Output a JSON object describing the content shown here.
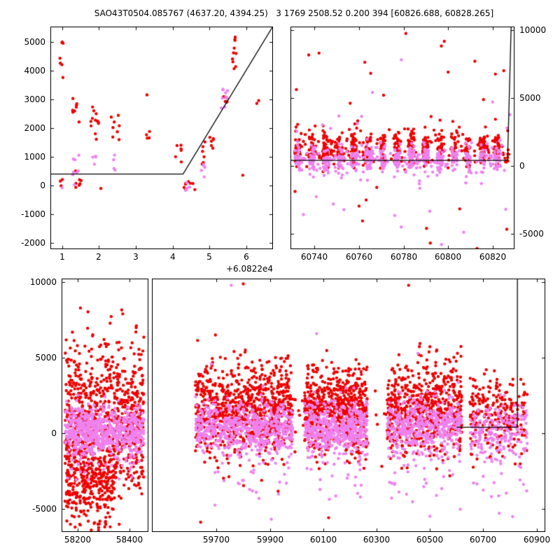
{
  "title": "SAO43T0504.085767 (4637.20, 4394.25)   3 1769 2508.52 0.200 394 [60826.688, 60828.265]",
  "palette": {
    "red": "#ee0000",
    "violet": "#ee82ee",
    "line": "#000000"
  },
  "chart_data": [
    {
      "id": "top_left",
      "type": "scatter",
      "ylim": [
        -2200,
        5500
      ],
      "ytick_side": "left",
      "yticks": [
        {
          "v": 5000,
          "label": "5000"
        },
        {
          "v": 4000,
          "label": "4000"
        },
        {
          "v": 3000,
          "label": "3000"
        },
        {
          "v": 2000,
          "label": "2000"
        },
        {
          "v": 1000,
          "label": "1000"
        },
        {
          "v": 0,
          "label": "0"
        },
        {
          "v": -1000,
          "label": "-1000"
        },
        {
          "v": -2000,
          "label": "-2000"
        }
      ],
      "x_offset": "+6.0822e4",
      "panels": [
        {
          "frac": [
            0,
            1
          ],
          "xlim": [
            0.7,
            6.7
          ],
          "xticks": [
            {
              "v": 1,
              "label": "1"
            },
            {
              "v": 2,
              "label": "2"
            },
            {
              "v": 3,
              "label": "3"
            },
            {
              "v": 4,
              "label": "4"
            },
            {
              "v": 5,
              "label": "5"
            },
            {
              "v": 6,
              "label": "6"
            }
          ]
        }
      ],
      "line": {
        "color": "#000000",
        "width": 1.3,
        "points": [
          [
            0.7,
            394
          ],
          [
            4.28,
            394
          ],
          [
            6.7,
            5500
          ]
        ]
      },
      "series": [
        {
          "color": "red",
          "clusters": [
            {
              "x0": 0.92,
              "x1": 1.04,
              "n": 6,
              "y": {
                "mean": 4300,
                "sd": 600,
                "min": 3500,
                "max": 5300
              }
            },
            {
              "x0": 0.95,
              "x1": 1.06,
              "n": 3,
              "y": {
                "mean": 60,
                "sd": 90,
                "min": -150,
                "max": 300
              }
            },
            {
              "x0": 1.28,
              "x1": 1.5,
              "n": 9,
              "y": {
                "mean": 2700,
                "sd": 260,
                "min": 2200,
                "max": 3150
              }
            },
            {
              "x0": 1.3,
              "x1": 1.55,
              "n": 7,
              "y": {
                "mean": 160,
                "sd": 160,
                "min": -150,
                "max": 500
              }
            },
            {
              "x0": 1.75,
              "x1": 2.0,
              "n": 12,
              "y": {
                "mean": 2200,
                "sd": 450,
                "min": 1400,
                "max": 3000
              }
            },
            {
              "x0": 2.3,
              "x1": 2.55,
              "n": 8,
              "y": {
                "mean": 1900,
                "sd": 360,
                "min": 1150,
                "max": 2600
              }
            },
            {
              "x0": 3.25,
              "x1": 3.42,
              "n": 4,
              "y": {
                "mean": 1800,
                "sd": 130,
                "min": 1600,
                "max": 2000
              }
            },
            {
              "x0": 4.05,
              "x1": 4.25,
              "n": 6,
              "y": {
                "mean": 1100,
                "sd": 220,
                "min": 700,
                "max": 1400
              }
            },
            {
              "x0": 4.3,
              "x1": 4.55,
              "n": 8,
              "y": {
                "mean": 60,
                "sd": 150,
                "min": -250,
                "max": 350
              }
            },
            {
              "x0": 4.75,
              "x1": 4.95,
              "n": 6,
              "y": {
                "mean": 1100,
                "sd": 350,
                "min": 600,
                "max": 1650
              }
            },
            {
              "x0": 5.0,
              "x1": 5.15,
              "n": 6,
              "y": {
                "mean": 1800,
                "sd": 350,
                "min": 1250,
                "max": 2350
              }
            },
            {
              "x0": 5.3,
              "x1": 5.5,
              "n": 6,
              "y": {
                "mean": 3100,
                "sd": 160,
                "min": 2850,
                "max": 3400
              }
            },
            {
              "x0": 5.5,
              "x1": 5.72,
              "n": 10,
              "y": {
                "mean": 4600,
                "sd": 420,
                "min": 3900,
                "max": 5400
              }
            }
          ],
          "points": [
            [
              5.9,
              350
            ],
            [
              6.28,
              2850
            ],
            [
              6.33,
              2950
            ],
            [
              4.6,
              -150
            ],
            [
              2.05,
              -110
            ],
            [
              3.3,
              3150
            ],
            [
              1.02,
              3750
            ]
          ]
        },
        {
          "color": "violet",
          "clusters": [
            {
              "x0": 1.28,
              "x1": 1.46,
              "n": 8,
              "y": {
                "mean": 600,
                "sd": 340,
                "min": -150,
                "max": 1150
              }
            },
            {
              "x0": 1.8,
              "x1": 1.96,
              "n": 4,
              "y": {
                "mean": 900,
                "sd": 130,
                "min": 700,
                "max": 1100
              }
            },
            {
              "x0": 2.35,
              "x1": 2.52,
              "n": 3,
              "y": {
                "mean": 650,
                "sd": 150,
                "min": 420,
                "max": 900
              }
            },
            {
              "x0": 4.35,
              "x1": 4.52,
              "n": 5,
              "y": {
                "mean": -40,
                "sd": 130,
                "min": -260,
                "max": 180
              }
            },
            {
              "x0": 4.75,
              "x1": 4.9,
              "n": 5,
              "y": {
                "mean": 500,
                "sd": 160,
                "min": 250,
                "max": 780
              }
            },
            {
              "x0": 5.3,
              "x1": 5.5,
              "n": 9,
              "y": {
                "mean": 3000,
                "sd": 260,
                "min": 2600,
                "max": 3450
              }
            }
          ],
          "points": [
            [
              1.0,
              -90
            ],
            [
              2.42,
              1050
            ]
          ]
        }
      ]
    },
    {
      "id": "top_right",
      "type": "scatter",
      "ylim": [
        -6100,
        10200
      ],
      "ytick_side": "right",
      "yticks": [
        {
          "v": 10000,
          "label": "10000"
        },
        {
          "v": 5000,
          "label": "5000"
        },
        {
          "v": 0,
          "label": "0"
        },
        {
          "v": -5000,
          "label": "-5000"
        }
      ],
      "panels": [
        {
          "frac": [
            0,
            1
          ],
          "xlim": [
            60729.5,
            60829.5
          ],
          "xticks": [
            {
              "v": 60740,
              "label": "60740"
            },
            {
              "v": 60760,
              "label": "60760"
            },
            {
              "v": 60780,
              "label": "60780"
            },
            {
              "v": 60800,
              "label": "60800"
            },
            {
              "v": 60820,
              "label": "60820"
            }
          ]
        }
      ],
      "line": {
        "color": "#000000",
        "width": 1.3,
        "points": [
          [
            60729.5,
            394
          ],
          [
            60826.7,
            394
          ],
          [
            60828.3,
            10200
          ]
        ]
      },
      "series": [
        {
          "color": "red",
          "clusters": [
            {
              "x0": 60731,
              "x1": 60827,
              "n": 430,
              "columns": {
                "period": 6.4,
                "width": 2.4
              },
              "y": {
                "mean": 1300,
                "sd": 620,
                "min": -700,
                "max": 3400
              }
            },
            {
              "x0": 60731,
              "x1": 60828,
              "n": 220,
              "y": {
                "mean": 1250,
                "sd": 700,
                "min": -900,
                "max": 3600
              }
            },
            {
              "x0": 60731,
              "x1": 60828,
              "n": 26,
              "y": {
                "uniform": [
                  -5200,
                  9300
                ]
              }
            }
          ],
          "points": [
            [
              60781,
              9750
            ],
            [
              60742,
              8300
            ],
            [
              60812,
              7700
            ],
            [
              60800,
              6900
            ],
            [
              60825,
              7000
            ],
            [
              60768,
              -6800
            ],
            [
              60783,
              -7000
            ],
            [
              60792,
              -5700
            ],
            [
              60813,
              -6100
            ],
            [
              60771,
              5200
            ],
            [
              60756,
              4600
            ]
          ]
        },
        {
          "color": "violet",
          "clusters": [
            {
              "x0": 60731,
              "x1": 60827,
              "n": 380,
              "columns": {
                "period": 6.4,
                "width": 2.6
              },
              "y": {
                "mean": 480,
                "sd": 520,
                "min": -1200,
                "max": 2200
              }
            },
            {
              "x0": 60731,
              "x1": 60828,
              "n": 190,
              "y": {
                "mean": 420,
                "sd": 600,
                "min": -1400,
                "max": 2400
              }
            },
            {
              "x0": 60731,
              "x1": 60828,
              "n": 22,
              "y": {
                "uniform": [
                  -5600,
                  3800
                ]
              }
            }
          ],
          "points": [
            [
              60779,
              7800
            ],
            [
              60766,
              5400
            ],
            [
              60820,
              4700
            ],
            [
              60786,
              -6200
            ],
            [
              60797,
              -5800
            ],
            [
              60807,
              -4900
            ],
            [
              60735,
              -3600
            ],
            [
              60778,
              -6500
            ]
          ]
        }
      ]
    },
    {
      "id": "bottom",
      "type": "scatter",
      "ylim": [
        -6500,
        10200
      ],
      "ytick_side": "left",
      "yticks": [
        {
          "v": 10000,
          "label": "10000"
        },
        {
          "v": 5000,
          "label": "5000"
        },
        {
          "v": 0,
          "label": "0"
        },
        {
          "v": -5000,
          "label": "-5000"
        }
      ],
      "panels": [
        {
          "frac": [
            0,
            0.179
          ],
          "xlim": [
            58140,
            58470
          ],
          "xticks": [
            {
              "v": 58200,
              "label": "58200"
            },
            {
              "v": 58400,
              "label": "58400"
            }
          ]
        },
        {
          "frac": [
            0.186,
            1
          ],
          "xlim": [
            59460,
            60930
          ],
          "xticks": [
            {
              "v": 59700,
              "label": "59700"
            },
            {
              "v": 59900,
              "label": "59900"
            },
            {
              "v": 60100,
              "label": "60100"
            },
            {
              "v": 60300,
              "label": "60300"
            },
            {
              "v": 60500,
              "label": "60500"
            },
            {
              "v": 60700,
              "label": "60700"
            },
            {
              "v": 60900,
              "label": "60900"
            }
          ]
        }
      ],
      "line": {
        "color": "#000000",
        "width": 1.3,
        "points": [
          [
            60600,
            394
          ],
          [
            60828,
            394
          ],
          [
            60828,
            10200
          ]
        ]
      },
      "series": [
        {
          "color": "red",
          "clusters": [
            {
              "x0": 58150,
              "x1": 58455,
              "n": 850,
              "y": {
                "mean": 700,
                "sd": 2500,
                "min": -7000,
                "max": 8200
              }
            },
            {
              "x0": 58150,
              "x1": 58340,
              "n": 260,
              "y": {
                "mean": -3300,
                "sd": 1600,
                "min": -7000,
                "max": -300
              }
            },
            {
              "x0": 59620,
              "x1": 59985,
              "n": 850,
              "y": {
                "mean": 1600,
                "sd": 1500,
                "min": -4200,
                "max": 9800
              }
            },
            {
              "x0": 60030,
              "x1": 60265,
              "n": 650,
              "y": {
                "mean": 1500,
                "sd": 1450,
                "min": -4200,
                "max": 9500
              }
            },
            {
              "x0": 60340,
              "x1": 60620,
              "n": 650,
              "y": {
                "mean": 1600,
                "sd": 1550,
                "min": -4800,
                "max": 9700
              }
            },
            {
              "x0": 60650,
              "x1": 60865,
              "n": 240,
              "y": {
                "mean": 1300,
                "sd": 1300,
                "min": -3800,
                "max": 8200
              }
            },
            {
              "x0": 59985,
              "x1": 60030,
              "n": 8,
              "y": {
                "mean": 600,
                "sd": 1200,
                "min": -2000,
                "max": 3000
              }
            },
            {
              "x0": 60265,
              "x1": 60340,
              "n": 10,
              "y": {
                "mean": 800,
                "sd": 1500,
                "min": -2500,
                "max": 4000
              }
            }
          ],
          "points": [
            [
              59640,
              -5900
            ],
            [
              60120,
              -5600
            ],
            [
              59800,
              9900
            ],
            [
              60420,
              9800
            ],
            [
              58210,
              8300
            ]
          ]
        },
        {
          "color": "violet",
          "clusters": [
            {
              "x0": 58150,
              "x1": 58455,
              "n": 620,
              "y": {
                "mean": 150,
                "sd": 750,
                "min": -2600,
                "max": 3200
              }
            },
            {
              "x0": 58150,
              "x1": 58455,
              "n": 50,
              "y": {
                "mean": -1600,
                "sd": 900,
                "min": -4200,
                "max": -500
              }
            },
            {
              "x0": 59620,
              "x1": 59985,
              "n": 580,
              "y": {
                "mean": 300,
                "sd": 850,
                "min": -3000,
                "max": 3800
              }
            },
            {
              "x0": 59620,
              "x1": 59985,
              "n": 30,
              "y": {
                "mean": -2500,
                "sd": 1600,
                "min": -6000,
                "max": -800
              }
            },
            {
              "x0": 60030,
              "x1": 60265,
              "n": 470,
              "y": {
                "mean": 300,
                "sd": 850,
                "min": -3000,
                "max": 3600
              }
            },
            {
              "x0": 60030,
              "x1": 60265,
              "n": 22,
              "y": {
                "mean": -2600,
                "sd": 1500,
                "min": -5800,
                "max": -900
              }
            },
            {
              "x0": 60340,
              "x1": 60620,
              "n": 470,
              "y": {
                "mean": 400,
                "sd": 950,
                "min": -3200,
                "max": 4200
              }
            },
            {
              "x0": 60340,
              "x1": 60620,
              "n": 25,
              "y": {
                "mean": -2600,
                "sd": 1500,
                "min": -5800,
                "max": -900
              }
            },
            {
              "x0": 60650,
              "x1": 60865,
              "n": 210,
              "y": {
                "mean": 50,
                "sd": 1000,
                "min": -3500,
                "max": 3200
              }
            },
            {
              "x0": 60650,
              "x1": 60865,
              "n": 14,
              "y": {
                "mean": -3000,
                "sd": 1400,
                "min": -5600,
                "max": -1200
              }
            }
          ],
          "points": [
            [
              59755,
              9800
            ],
            [
              60075,
              6600
            ],
            [
              60455,
              5300
            ],
            [
              59905,
              -5700
            ],
            [
              60500,
              -5500
            ],
            [
              60760,
              -5300
            ],
            [
              59680,
              4600
            ],
            [
              58300,
              -2400
            ]
          ]
        }
      ]
    }
  ]
}
